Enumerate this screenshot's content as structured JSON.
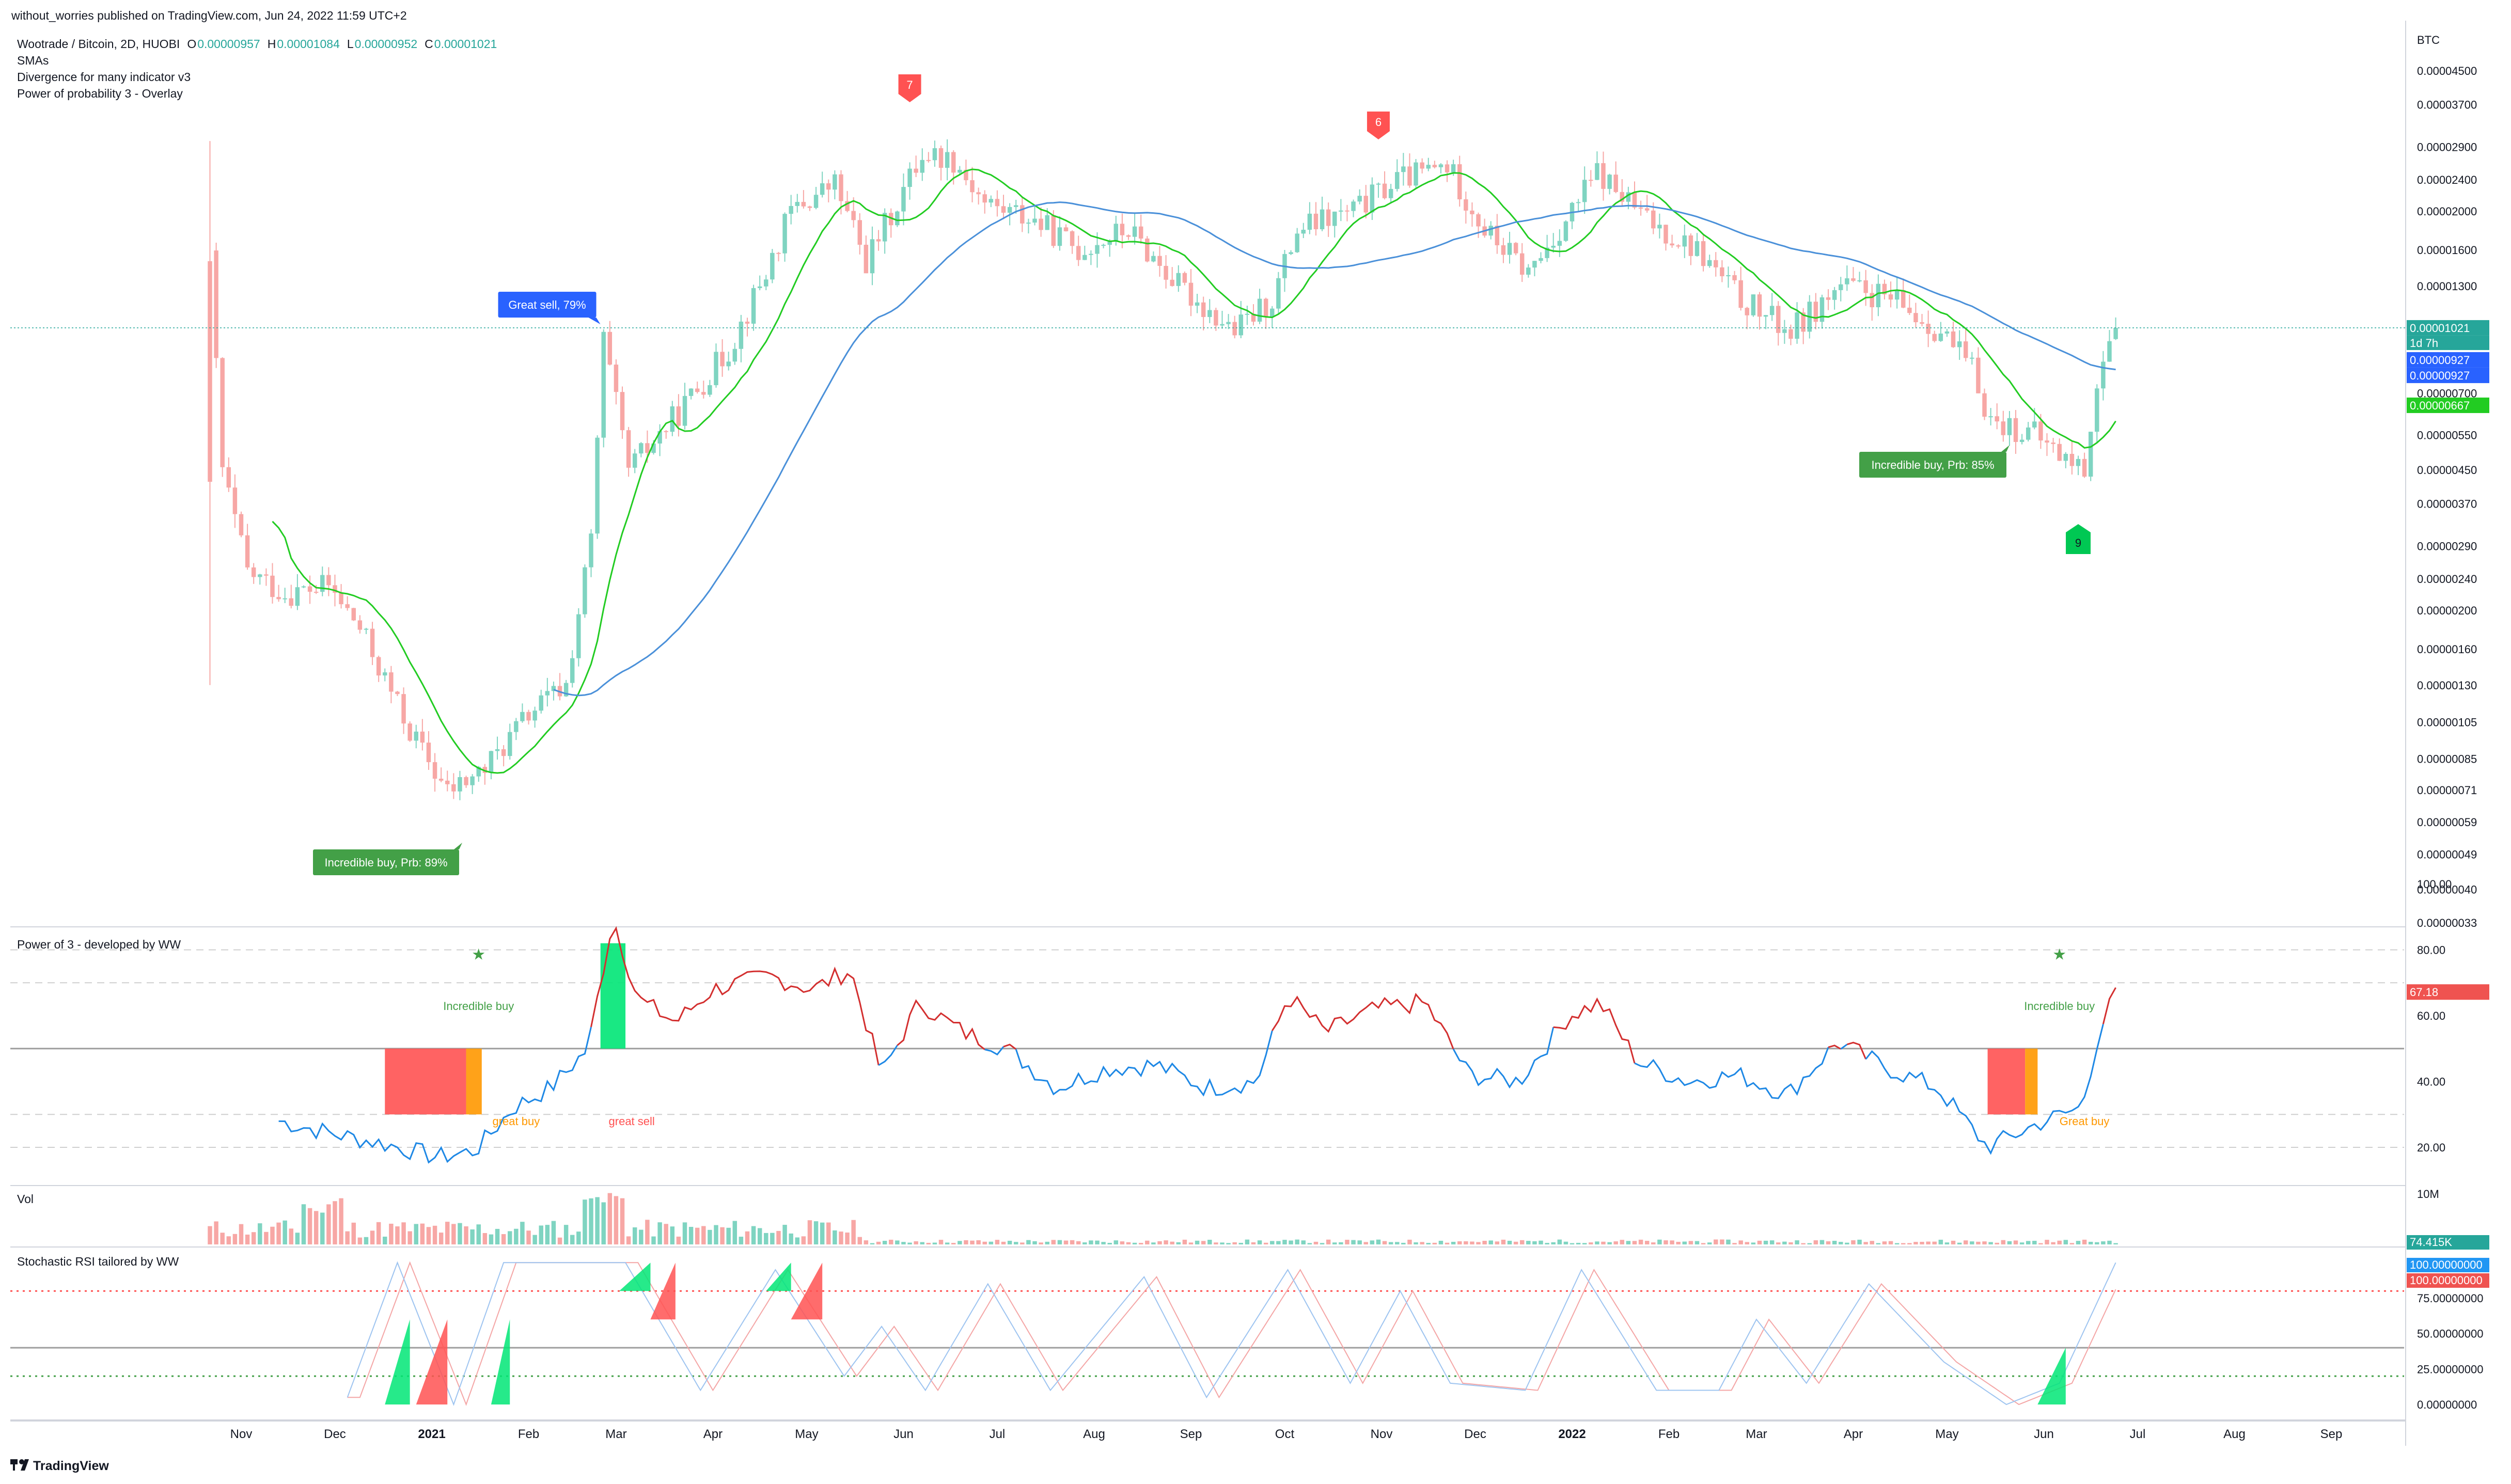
{
  "header": {
    "publisher": "without_worries published on TradingView.com, Jun 24, 2022 11:59 UTC+2",
    "symbol": "Wootrade / Bitcoin, 2D, HUOBI",
    "ohlc": [
      {
        "k": "O",
        "v": "0.00000957"
      },
      {
        "k": "H",
        "v": "0.00001084"
      },
      {
        "k": "L",
        "v": "0.00000952"
      },
      {
        "k": "C",
        "v": "0.00001021"
      }
    ],
    "indicators": [
      "SMAs",
      "Divergence for many indicator v3",
      "Power of probability 3 - Overlay"
    ]
  },
  "footer": {
    "brand": "TradingView"
  },
  "colors": {
    "up": "#26a69a",
    "down": "#ef5350",
    "sma_fast": "#22cc22",
    "sma_slow": "#4a90d9",
    "buy": "#43a047",
    "sell": "#ff5252",
    "orange": "#ff9800"
  },
  "chart_data": [
    {
      "id": "price",
      "type": "candlestick",
      "scale": "log",
      "currency": "BTC",
      "ylim": [
        3.3e-07,
        4.5e-05
      ],
      "price_ticks": [
        "0.00004500",
        "0.00003700",
        "0.00002900",
        "0.00002400",
        "0.00002000",
        "0.00001600",
        "0.00001300",
        "0.00000700",
        "0.00000550",
        "0.00000450",
        "0.00000370",
        "0.00000290",
        "0.00000240",
        "0.00000200",
        "0.00000160",
        "0.00000130",
        "0.00000105",
        "0.00000085",
        "0.00000071",
        "0.00000059",
        "0.00000049",
        "0.00000040",
        "0.00000033"
      ],
      "x_ticks": [
        "Nov",
        "Dec",
        "2021",
        "Feb",
        "Mar",
        "Apr",
        "May",
        "Jun",
        "Jul",
        "Aug",
        "Sep",
        "Oct",
        "Nov",
        "Dec",
        "2022",
        "Feb",
        "Mar",
        "Apr",
        "May",
        "Jun",
        "Jul",
        "Aug",
        "Sep"
      ],
      "x_range": [
        "2020-10-12",
        "2022-10-09"
      ],
      "last_price": {
        "value": "0.00001021",
        "countdown": "1d 7h"
      },
      "price_labels": [
        {
          "value": "0.00000927",
          "color": "#2962ff"
        },
        {
          "value": "0.00000927",
          "color": "#2962ff"
        },
        {
          "value": "0.00000667",
          "color": "#22cc22"
        }
      ],
      "close_anchors": [
        [
          "2020-10-22",
          1.5e-05
        ],
        [
          "2020-10-26",
          4.5e-06
        ],
        [
          "2020-11-03",
          2.5e-06
        ],
        [
          "2020-11-15",
          2.2e-06
        ],
        [
          "2020-11-29",
          2.3e-06
        ],
        [
          "2020-12-09",
          1.8e-06
        ],
        [
          "2020-12-25",
          1e-06
        ],
        [
          "2021-01-06",
          7e-07
        ],
        [
          "2021-01-18",
          8e-07
        ],
        [
          "2021-02-01",
          1.1e-06
        ],
        [
          "2021-02-13",
          1.3e-06
        ],
        [
          "2021-02-21",
          3e-06
        ],
        [
          "2021-02-25",
          9.5e-06
        ],
        [
          "2021-03-05",
          4.5e-06
        ],
        [
          "2021-03-19",
          6e-06
        ],
        [
          "2021-04-06",
          9e-06
        ],
        [
          "2021-04-18",
          1.4e-05
        ],
        [
          "2021-04-26",
          2e-05
        ],
        [
          "2021-05-10",
          2.35e-05
        ],
        [
          "2021-05-20",
          1.5e-05
        ],
        [
          "2021-05-30",
          2.1e-05
        ],
        [
          "2021-06-07",
          2.8e-05
        ],
        [
          "2021-06-17",
          2.7e-05
        ],
        [
          "2021-06-27",
          2.1e-05
        ],
        [
          "2021-07-13",
          1.9e-05
        ],
        [
          "2021-07-27",
          1.6e-05
        ],
        [
          "2021-08-12",
          1.8e-05
        ],
        [
          "2021-08-28",
          1.3e-05
        ],
        [
          "2021-09-15",
          1e-05
        ],
        [
          "2021-09-27",
          1.2e-05
        ],
        [
          "2021-10-05",
          1.8e-05
        ],
        [
          "2021-10-23",
          2e-05
        ],
        [
          "2021-11-06",
          2.4e-05
        ],
        [
          "2021-11-22",
          2.6e-05
        ],
        [
          "2021-12-04",
          1.8e-05
        ],
        [
          "2021-12-18",
          1.4e-05
        ],
        [
          "2021-12-30",
          1.9e-05
        ],
        [
          "2022-01-09",
          2.5e-05
        ],
        [
          "2022-01-25",
          1.9e-05
        ],
        [
          "2022-02-10",
          1.6e-05
        ],
        [
          "2022-02-24",
          1.2e-05
        ],
        [
          "2022-03-12",
          1e-05
        ],
        [
          "2022-03-28",
          1.3e-05
        ],
        [
          "2022-04-13",
          1.2e-05
        ],
        [
          "2022-04-29",
          1e-05
        ],
        [
          "2022-05-09",
          8e-06
        ],
        [
          "2022-05-15",
          6e-06
        ],
        [
          "2022-05-29",
          5.5e-06
        ],
        [
          "2022-06-08",
          4.8e-06
        ],
        [
          "2022-06-14",
          4.5e-06
        ],
        [
          "2022-06-18",
          7.5e-06
        ],
        [
          "2022-06-24",
          1.02e-05
        ]
      ],
      "sma_fast_label": "SMA",
      "annotations": [
        {
          "text": "Great sell, 79%",
          "type": "sell-box",
          "date": "2021-02-21"
        },
        {
          "text": "Incredible buy, Prb: 89%",
          "type": "buy-box",
          "date": "2021-01-12"
        },
        {
          "text": "Incredible buy, Prb: 85%",
          "type": "buy-box",
          "date": "2022-05-20"
        },
        {
          "text": "7",
          "type": "sell-flag",
          "date": "2021-06-03"
        },
        {
          "text": "6",
          "type": "sell-flag",
          "date": "2021-10-31"
        },
        {
          "text": "9",
          "type": "buy-flag",
          "date": "2022-06-12"
        }
      ]
    },
    {
      "id": "power3",
      "type": "line",
      "title": "Power of 3 - developed by WW",
      "ylim": [
        10,
        100
      ],
      "y_ticks": [
        "100.00",
        "80.00",
        "60.00",
        "40.00",
        "20.00"
      ],
      "last_value": "67.18",
      "midline": 50,
      "labels": [
        {
          "text": "Incredible buy",
          "date": "2021-01-16",
          "y": 63,
          "color": "#43a047",
          "star": "★"
        },
        {
          "text": "Incredible buy",
          "date": "2022-06-06",
          "y": 63,
          "color": "#43a047",
          "star": "★"
        },
        {
          "text": "great buy",
          "date": "2021-01-28",
          "y": 28,
          "color": "#ff9800"
        },
        {
          "text": "great sell",
          "date": "2021-03-06",
          "y": 28,
          "color": "#ff5252"
        },
        {
          "text": "Great buy",
          "date": "2022-06-14",
          "y": 28,
          "color": "#ff9800"
        }
      ],
      "anchors": [
        [
          "2020-11-13",
          28
        ],
        [
          "2020-12-01",
          24
        ],
        [
          "2020-12-17",
          21
        ],
        [
          "2021-01-03",
          17
        ],
        [
          "2021-01-15",
          19
        ],
        [
          "2021-01-27",
          32
        ],
        [
          "2021-02-08",
          38
        ],
        [
          "2021-02-20",
          50
        ],
        [
          "2021-02-28",
          90
        ],
        [
          "2021-03-08",
          65
        ],
        [
          "2021-03-20",
          58
        ],
        [
          "2021-04-01",
          68
        ],
        [
          "2021-04-19",
          72
        ],
        [
          "2021-05-03",
          68
        ],
        [
          "2021-05-15",
          74
        ],
        [
          "2021-05-25",
          42
        ],
        [
          "2021-06-06",
          64
        ],
        [
          "2021-06-20",
          55
        ],
        [
          "2021-07-04",
          50
        ],
        [
          "2021-07-20",
          38
        ],
        [
          "2021-08-05",
          44
        ],
        [
          "2021-08-21",
          45
        ],
        [
          "2021-09-06",
          38
        ],
        [
          "2021-09-22",
          40
        ],
        [
          "2021-10-02",
          66
        ],
        [
          "2021-10-14",
          55
        ],
        [
          "2021-10-30",
          62
        ],
        [
          "2021-11-15",
          64
        ],
        [
          "2021-11-29",
          42
        ],
        [
          "2021-12-15",
          40
        ],
        [
          "2021-12-31",
          60
        ],
        [
          "2022-01-10",
          64
        ],
        [
          "2022-01-22",
          46
        ],
        [
          "2022-02-07",
          40
        ],
        [
          "2022-02-23",
          42
        ],
        [
          "2022-03-11",
          36
        ],
        [
          "2022-03-27",
          52
        ],
        [
          "2022-04-12",
          44
        ],
        [
          "2022-04-28",
          38
        ],
        [
          "2022-05-14",
          20
        ],
        [
          "2022-06-01",
          28
        ],
        [
          "2022-06-13",
          32
        ],
        [
          "2022-06-19",
          56
        ],
        [
          "2022-06-24",
          67
        ]
      ]
    },
    {
      "id": "volume",
      "type": "bar",
      "title": "Vol",
      "y_ticks": [
        "10M"
      ],
      "last_value": "74.415K"
    },
    {
      "id": "stochrsi",
      "type": "line",
      "title": "Stochastic RSI tailored by WW",
      "ylim": [
        0,
        100
      ],
      "y_ticks": [
        "75.00000000",
        "50.00000000",
        "25.00000000",
        "0.00000000"
      ],
      "last_values": [
        "100.00000000",
        "100.00000000"
      ],
      "levels": [
        80,
        40,
        20
      ],
      "cycle_peaks": [
        [
          "2020-12-05",
          5
        ],
        [
          "2020-12-21",
          100
        ],
        [
          "2021-01-08",
          0
        ],
        [
          "2021-01-24",
          100
        ],
        [
          "2021-03-04",
          100
        ],
        [
          "2021-03-28",
          10
        ],
        [
          "2021-04-21",
          95
        ],
        [
          "2021-05-13",
          20
        ],
        [
          "2021-05-25",
          55
        ],
        [
          "2021-06-08",
          10
        ],
        [
          "2021-06-28",
          85
        ],
        [
          "2021-07-18",
          10
        ],
        [
          "2021-08-17",
          90
        ],
        [
          "2021-09-06",
          5
        ],
        [
          "2021-10-02",
          95
        ],
        [
          "2021-10-22",
          15
        ],
        [
          "2021-11-07",
          80
        ],
        [
          "2021-11-23",
          15
        ],
        [
          "2021-12-17",
          10
        ],
        [
          "2022-01-04",
          95
        ],
        [
          "2022-01-28",
          10
        ],
        [
          "2022-02-17",
          10
        ],
        [
          "2022-03-01",
          60
        ],
        [
          "2022-03-17",
          15
        ],
        [
          "2022-04-06",
          85
        ],
        [
          "2022-04-30",
          30
        ],
        [
          "2022-05-20",
          0
        ],
        [
          "2022-06-06",
          15
        ],
        [
          "2022-06-24",
          100
        ]
      ]
    }
  ]
}
